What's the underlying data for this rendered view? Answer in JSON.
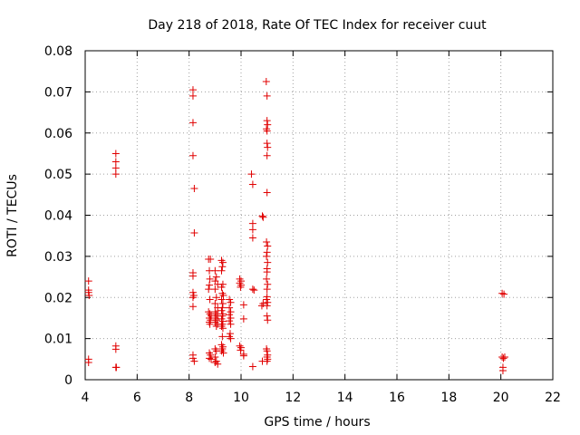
{
  "chart_data": {
    "type": "scatter",
    "title": "Day 218 of 2018, Rate Of TEC Index for receiver cuut",
    "xlabel": "GPS time / hours",
    "ylabel": "ROTI / TECUs",
    "xlim": [
      4,
      22
    ],
    "ylim": [
      0,
      0.08
    ],
    "xticks": [
      4,
      6,
      8,
      10,
      12,
      14,
      16,
      18,
      20,
      22
    ],
    "xtick_labels": [
      "4",
      "6",
      "8",
      "10",
      "12",
      "14",
      "16",
      "18",
      "20",
      "22"
    ],
    "yticks": [
      0,
      0.01,
      0.02,
      0.03,
      0.04,
      0.05,
      0.06,
      0.07,
      0.08
    ],
    "ytick_labels": [
      "0",
      "0.01",
      "0.02",
      "0.03",
      "0.04",
      "0.05",
      "0.06",
      "0.07",
      "0.08"
    ],
    "grid": true,
    "marker": "+",
    "color": "#e00000",
    "series": [
      {
        "name": "cuut",
        "points": [
          [
            4.13,
            0.024
          ],
          [
            4.13,
            0.0218
          ],
          [
            4.13,
            0.0212
          ],
          [
            4.15,
            0.0205
          ],
          [
            4.13,
            0.005
          ],
          [
            4.13,
            0.0042
          ],
          [
            5.18,
            0.055
          ],
          [
            5.18,
            0.053
          ],
          [
            5.18,
            0.0515
          ],
          [
            5.18,
            0.05
          ],
          [
            5.18,
            0.0082
          ],
          [
            5.18,
            0.0074
          ],
          [
            5.18,
            0.003
          ],
          [
            5.2,
            0.003
          ],
          [
            8.15,
            0.0705
          ],
          [
            8.15,
            0.069
          ],
          [
            8.15,
            0.0625
          ],
          [
            8.15,
            0.0545
          ],
          [
            8.2,
            0.0465
          ],
          [
            8.2,
            0.0357
          ],
          [
            8.15,
            0.026
          ],
          [
            8.15,
            0.0252
          ],
          [
            8.15,
            0.0212
          ],
          [
            8.18,
            0.0205
          ],
          [
            8.15,
            0.02
          ],
          [
            8.15,
            0.0178
          ],
          [
            8.15,
            0.006
          ],
          [
            8.15,
            0.0052
          ],
          [
            8.2,
            0.0045
          ],
          [
            8.75,
            0.0293
          ],
          [
            8.82,
            0.0293
          ],
          [
            8.78,
            0.0265
          ],
          [
            8.8,
            0.0245
          ],
          [
            8.78,
            0.023
          ],
          [
            8.75,
            0.022
          ],
          [
            8.8,
            0.0195
          ],
          [
            8.75,
            0.0165
          ],
          [
            8.8,
            0.016
          ],
          [
            8.85,
            0.0155
          ],
          [
            8.78,
            0.015
          ],
          [
            8.82,
            0.0145
          ],
          [
            8.78,
            0.014
          ],
          [
            8.8,
            0.0135
          ],
          [
            8.78,
            0.0065
          ],
          [
            8.82,
            0.006
          ],
          [
            8.78,
            0.0052
          ],
          [
            8.85,
            0.005
          ],
          [
            9.0,
            0.0265
          ],
          [
            9.05,
            0.025
          ],
          [
            9.0,
            0.024
          ],
          [
            9.1,
            0.0232
          ],
          [
            9.0,
            0.022
          ],
          [
            9.05,
            0.02
          ],
          [
            9.0,
            0.0185
          ],
          [
            9.1,
            0.0175
          ],
          [
            9.0,
            0.0165
          ],
          [
            9.05,
            0.016
          ],
          [
            9.1,
            0.0155
          ],
          [
            9.0,
            0.015
          ],
          [
            9.05,
            0.0145
          ],
          [
            9.0,
            0.014
          ],
          [
            9.1,
            0.0135
          ],
          [
            9.05,
            0.013
          ],
          [
            9.0,
            0.0075
          ],
          [
            9.05,
            0.007
          ],
          [
            9.0,
            0.0055
          ],
          [
            9.05,
            0.0045
          ],
          [
            9.0,
            0.0042
          ],
          [
            9.1,
            0.0038
          ],
          [
            9.25,
            0.029
          ],
          [
            9.3,
            0.0285
          ],
          [
            9.28,
            0.0275
          ],
          [
            9.25,
            0.0265
          ],
          [
            9.3,
            0.0232
          ],
          [
            9.25,
            0.0225
          ],
          [
            9.28,
            0.021
          ],
          [
            9.32,
            0.0205
          ],
          [
            9.25,
            0.0195
          ],
          [
            9.3,
            0.0185
          ],
          [
            9.28,
            0.0175
          ],
          [
            9.25,
            0.0168
          ],
          [
            9.3,
            0.016
          ],
          [
            9.28,
            0.0155
          ],
          [
            9.25,
            0.0148
          ],
          [
            9.3,
            0.0142
          ],
          [
            9.28,
            0.0135
          ],
          [
            9.25,
            0.013
          ],
          [
            9.3,
            0.0125
          ],
          [
            9.28,
            0.0105
          ],
          [
            9.25,
            0.0085
          ],
          [
            9.3,
            0.008
          ],
          [
            9.28,
            0.0075
          ],
          [
            9.25,
            0.007
          ],
          [
            9.32,
            0.0065
          ],
          [
            9.55,
            0.0195
          ],
          [
            9.6,
            0.0188
          ],
          [
            9.55,
            0.0175
          ],
          [
            9.6,
            0.0165
          ],
          [
            9.55,
            0.0158
          ],
          [
            9.6,
            0.015
          ],
          [
            9.55,
            0.0143
          ],
          [
            9.6,
            0.0135
          ],
          [
            9.58,
            0.0112
          ],
          [
            9.55,
            0.0105
          ],
          [
            9.6,
            0.01
          ],
          [
            9.95,
            0.0245
          ],
          [
            10.0,
            0.024
          ],
          [
            9.95,
            0.0235
          ],
          [
            10.0,
            0.023
          ],
          [
            9.98,
            0.0225
          ],
          [
            9.95,
            0.0082
          ],
          [
            10.0,
            0.0078
          ],
          [
            9.98,
            0.0072
          ],
          [
            10.1,
            0.0182
          ],
          [
            10.1,
            0.0148
          ],
          [
            10.1,
            0.0062
          ],
          [
            10.1,
            0.0058
          ],
          [
            10.4,
            0.05
          ],
          [
            10.45,
            0.0475
          ],
          [
            10.45,
            0.038
          ],
          [
            10.45,
            0.0365
          ],
          [
            10.45,
            0.0345
          ],
          [
            10.45,
            0.022
          ],
          [
            10.5,
            0.0218
          ],
          [
            10.45,
            0.0032
          ],
          [
            10.82,
            0.0398
          ],
          [
            10.85,
            0.0395
          ],
          [
            10.8,
            0.018
          ],
          [
            10.85,
            0.0185
          ],
          [
            10.82,
            0.0045
          ],
          [
            10.97,
            0.0725
          ],
          [
            11.0,
            0.069
          ],
          [
            11.0,
            0.063
          ],
          [
            11.02,
            0.062
          ],
          [
            10.98,
            0.061
          ],
          [
            11.0,
            0.0605
          ],
          [
            11.0,
            0.0575
          ],
          [
            11.02,
            0.0565
          ],
          [
            11.0,
            0.0545
          ],
          [
            11.0,
            0.0455
          ],
          [
            10.98,
            0.0335
          ],
          [
            11.02,
            0.0325
          ],
          [
            11.0,
            0.031
          ],
          [
            10.98,
            0.03
          ],
          [
            11.02,
            0.0285
          ],
          [
            11.0,
            0.027
          ],
          [
            11.0,
            0.0262
          ],
          [
            10.98,
            0.0245
          ],
          [
            11.02,
            0.0232
          ],
          [
            11.0,
            0.022
          ],
          [
            11.0,
            0.0202
          ],
          [
            10.98,
            0.0195
          ],
          [
            11.02,
            0.0188
          ],
          [
            11.0,
            0.018
          ],
          [
            11.0,
            0.0155
          ],
          [
            11.02,
            0.0145
          ],
          [
            10.98,
            0.0075
          ],
          [
            11.0,
            0.007
          ],
          [
            11.02,
            0.006
          ],
          [
            11.0,
            0.0055
          ],
          [
            11.02,
            0.005
          ],
          [
            11.0,
            0.0045
          ],
          [
            20.05,
            0.021
          ],
          [
            20.12,
            0.0208
          ],
          [
            20.05,
            0.0055
          ],
          [
            20.1,
            0.0052
          ],
          [
            20.15,
            0.0055
          ],
          [
            20.08,
            0.003
          ],
          [
            20.08,
            0.0022
          ]
        ]
      }
    ]
  }
}
